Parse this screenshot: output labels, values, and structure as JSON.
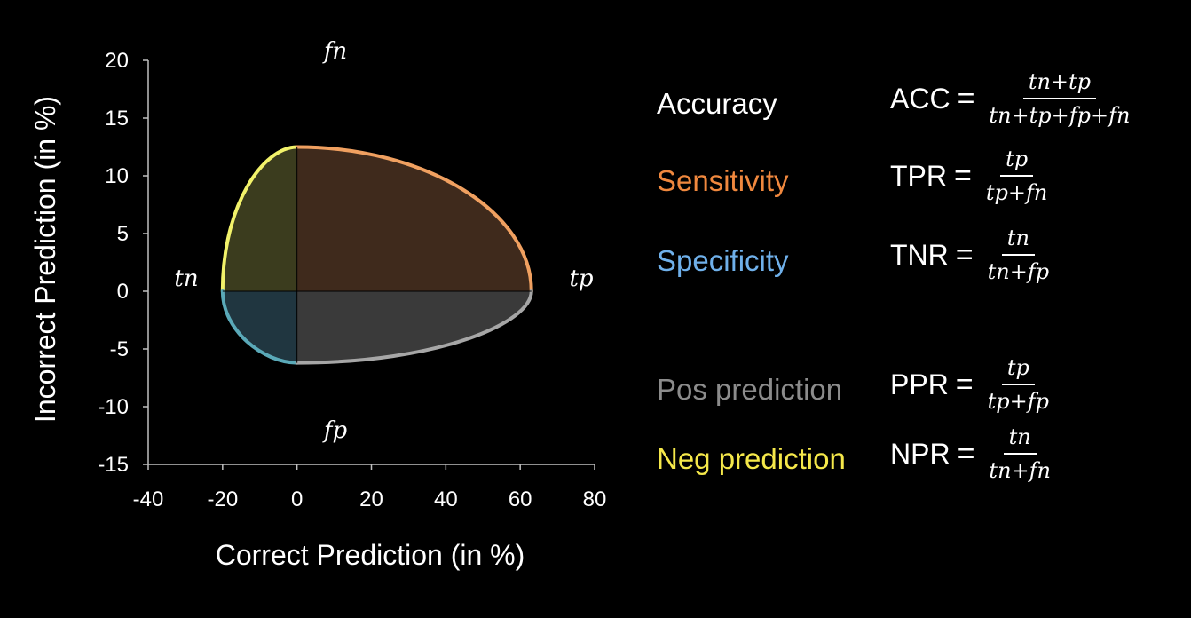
{
  "diagram": {
    "xlabel": "Correct Prediction (in %)",
    "ylabel": "Incorrect Prediction (in %)",
    "x_ticks": [
      "-40",
      "-20",
      "0",
      "20",
      "40",
      "60",
      "80"
    ],
    "y_ticks": [
      "20",
      "15",
      "10",
      "5",
      "0",
      "-5",
      "-10",
      "-15"
    ],
    "xlim": [
      -40,
      80
    ],
    "ylim": [
      -15,
      20
    ],
    "region_labels": {
      "fn": "fn",
      "fp": "fp",
      "tn": "tn",
      "tp": "tp"
    },
    "regions": [
      {
        "name": "tn-fn",
        "quadrant": "upper-left",
        "x_extent": -20,
        "y_extent": 12.5,
        "edge_color": "#f2f26a",
        "fill_color": "#3b3c1e"
      },
      {
        "name": "tp-fn",
        "quadrant": "upper-right",
        "x_extent": 63,
        "y_extent": 12.5,
        "edge_color": "#f0a060",
        "fill_color": "#3f2a1c"
      },
      {
        "name": "tn-fp",
        "quadrant": "lower-left",
        "x_extent": -20,
        "y_extent": -6.2,
        "edge_color": "#5aa9b8",
        "fill_color": "#203640"
      },
      {
        "name": "tp-fp",
        "quadrant": "lower-right",
        "x_extent": 63,
        "y_extent": -6.2,
        "edge_color": "#a6a6a6",
        "fill_color": "#3a3a3a"
      }
    ]
  },
  "metrics": [
    {
      "name": "Accuracy",
      "color": "#ffffff",
      "abbr": "ACC",
      "eq": "=",
      "num": "tn+tp",
      "den": "tn+tp+fp+fn"
    },
    {
      "name": "Sensitivity",
      "color": "#f0883e",
      "abbr": "TPR",
      "eq": "=",
      "num": "tp",
      "den": "tp+fn"
    },
    {
      "name": "Specificity",
      "color": "#6fb0ea",
      "abbr": "TNR",
      "eq": "=",
      "num": "tn",
      "den": "tn+fp"
    },
    {
      "name": "Pos prediction",
      "color": "#8c8c8c",
      "abbr": "PPR",
      "eq": "=",
      "num": "tp",
      "den": "tp+fp"
    },
    {
      "name": "Neg prediction",
      "color": "#f5e84a",
      "abbr": "NPR",
      "eq": "=",
      "num": "tn",
      "den": "tn+fn"
    }
  ]
}
